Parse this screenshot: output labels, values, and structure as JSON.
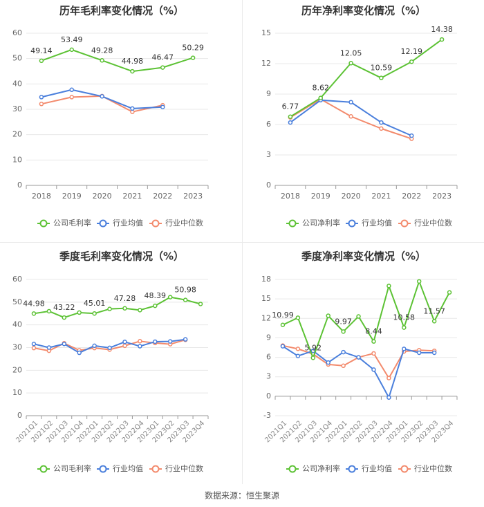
{
  "footer": {
    "source": "数据来源：恒生聚源"
  },
  "colors": {
    "company": "#5cc234",
    "avg": "#4a7fdc",
    "median": "#f38a6c",
    "grid": "#e8e8e8",
    "axis": "#999999",
    "text": "#333333"
  },
  "chart_data": [
    {
      "type": "line",
      "title": "历年毛利率变化情况（%）",
      "categories": [
        "2018",
        "2019",
        "2020",
        "2021",
        "2022",
        "2023"
      ],
      "ylim": [
        0,
        60
      ],
      "yticks": [
        0,
        10,
        20,
        30,
        40,
        50,
        60
      ],
      "grid": true,
      "legend": "bottom",
      "series": [
        {
          "name": "公司毛利率",
          "values": [
            49.14,
            53.49,
            49.28,
            44.98,
            46.47,
            50.29
          ],
          "labels": [
            "49.14",
            "53.49",
            "49.28",
            "44.98",
            "46.47",
            "50.29"
          ]
        },
        {
          "name": "行业均值",
          "values": [
            34.8,
            37.7,
            35.1,
            30.3,
            30.9,
            null
          ]
        },
        {
          "name": "行业中位数",
          "values": [
            32.1,
            34.8,
            35.2,
            29.0,
            31.6,
            null
          ]
        }
      ]
    },
    {
      "type": "line",
      "title": "历年净利率变化情况（%）",
      "categories": [
        "2018",
        "2019",
        "2020",
        "2021",
        "2022",
        "2023"
      ],
      "ylim": [
        0,
        15
      ],
      "yticks": [
        0,
        3,
        6,
        9,
        12,
        15
      ],
      "grid": true,
      "legend": "bottom",
      "series": [
        {
          "name": "公司净利率",
          "values": [
            6.77,
            8.62,
            12.05,
            10.59,
            12.19,
            14.38
          ],
          "labels": [
            "6.77",
            "8.62",
            "12.05",
            "10.59",
            "12.19",
            "14.38"
          ]
        },
        {
          "name": "行业均值",
          "values": [
            6.2,
            8.4,
            8.2,
            6.2,
            4.9,
            null
          ]
        },
        {
          "name": "行业中位数",
          "values": [
            6.7,
            8.5,
            6.8,
            5.6,
            4.6,
            null
          ]
        }
      ]
    },
    {
      "type": "line",
      "title": "季度毛利率变化情况（%）",
      "categories": [
        "2021Q1",
        "2021Q2",
        "2021Q3",
        "2021Q4",
        "2022Q1",
        "2022Q2",
        "2022Q3",
        "2022Q4",
        "2023Q1",
        "2023Q2",
        "2023Q3",
        "2023Q4"
      ],
      "ylim": [
        0,
        60
      ],
      "yticks": [
        0,
        10,
        20,
        30,
        40,
        50,
        60
      ],
      "grid": true,
      "legend": "bottom",
      "series": [
        {
          "name": "公司毛利率",
          "values": [
            44.98,
            46.0,
            43.22,
            45.4,
            45.01,
            47.0,
            47.28,
            46.5,
            48.39,
            52.2,
            50.98,
            49.2
          ],
          "labels": [
            "44.98",
            "",
            "43.22",
            "",
            "45.01",
            "",
            "47.28",
            "",
            "48.39",
            "",
            "50.98",
            ""
          ]
        },
        {
          "name": "行业均值",
          "values": [
            31.6,
            30.0,
            31.6,
            27.7,
            30.8,
            29.9,
            32.5,
            30.6,
            32.6,
            32.7,
            33.6,
            null
          ]
        },
        {
          "name": "行业中位数",
          "values": [
            29.8,
            28.6,
            31.9,
            28.8,
            29.8,
            29.1,
            30.8,
            32.8,
            32.0,
            31.5,
            33.4,
            null
          ]
        }
      ]
    },
    {
      "type": "line",
      "title": "季度净利率变化情况（%）",
      "categories": [
        "2021Q1",
        "2021Q2",
        "2021Q3",
        "2021Q4",
        "2022Q1",
        "2022Q2",
        "2022Q3",
        "2022Q4",
        "2023Q1",
        "2023Q2",
        "2023Q3",
        "2023Q4"
      ],
      "ylim": [
        -3,
        18
      ],
      "yticks": [
        -3,
        0,
        3,
        6,
        9,
        12,
        15,
        18
      ],
      "grid": true,
      "legend": "bottom",
      "series": [
        {
          "name": "公司净利率",
          "values": [
            10.99,
            12.1,
            5.92,
            12.4,
            9.97,
            12.3,
            8.44,
            17.0,
            10.58,
            17.7,
            11.57,
            16.0
          ],
          "labels": [
            "10.99",
            "",
            "5.92",
            "",
            "9.97",
            "",
            "8.44",
            "",
            "10.58",
            "",
            "11.57",
            ""
          ]
        },
        {
          "name": "行业均值",
          "values": [
            7.7,
            6.2,
            7.0,
            5.2,
            6.8,
            6.0,
            4.1,
            -0.2,
            7.3,
            6.7,
            6.7,
            null
          ]
        },
        {
          "name": "行业中位数",
          "values": [
            7.8,
            7.3,
            6.5,
            4.9,
            4.7,
            6.0,
            6.6,
            2.8,
            6.9,
            7.1,
            7.0,
            null
          ]
        }
      ]
    }
  ]
}
